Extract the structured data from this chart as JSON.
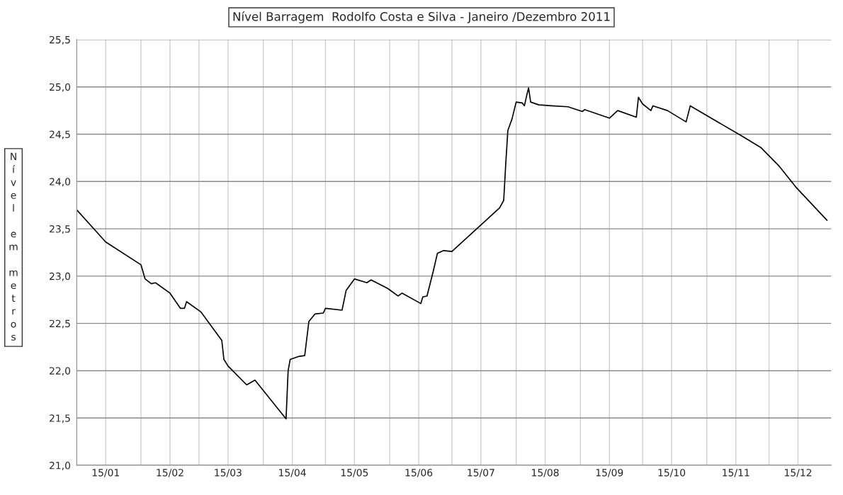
{
  "chart_data": {
    "type": "line",
    "title": "Nível Barragem  Rodolfo Costa e Silva - Janeiro /Dezembro 2011",
    "ylabel": "Nível em metros",
    "x": [
      "2011-01-01",
      "2011-01-15",
      "2011-02-01",
      "2011-02-03",
      "2011-02-06",
      "2011-02-08",
      "2011-02-15",
      "2011-02-20",
      "2011-02-22",
      "2011-02-23",
      "2011-03-02",
      "2011-03-12",
      "2011-03-13",
      "2011-03-15",
      "2011-03-24",
      "2011-03-28",
      "2011-04-12",
      "2011-04-13",
      "2011-04-14",
      "2011-04-18",
      "2011-04-21",
      "2011-04-23",
      "2011-04-26",
      "2011-04-30",
      "2011-05-01",
      "2011-05-09",
      "2011-05-11",
      "2011-05-15",
      "2011-05-21",
      "2011-05-23",
      "2011-05-31",
      "2011-06-05",
      "2011-06-07",
      "2011-06-16",
      "2011-06-17",
      "2011-06-19",
      "2011-06-22",
      "2011-06-24",
      "2011-06-27",
      "2011-07-01",
      "2011-07-24",
      "2011-07-26",
      "2011-07-27",
      "2011-07-28",
      "2011-07-30",
      "2011-08-01",
      "2011-08-04",
      "2011-08-05",
      "2011-08-06",
      "2011-08-07",
      "2011-08-08",
      "2011-08-12",
      "2011-08-18",
      "2011-08-26",
      "2011-09-02",
      "2011-09-03",
      "2011-09-15",
      "2011-09-19",
      "2011-09-28",
      "2011-09-29",
      "2011-10-01",
      "2011-10-05",
      "2011-10-06",
      "2011-10-13",
      "2011-10-22",
      "2011-10-24",
      "2011-11-07",
      "2011-11-18",
      "2011-11-27",
      "2011-12-06",
      "2011-12-14",
      "2011-12-29"
    ],
    "series": [
      {
        "color": "#000000",
        "values": [
          23.7,
          23.36,
          23.12,
          22.97,
          22.92,
          22.93,
          22.82,
          22.66,
          22.66,
          22.73,
          22.62,
          22.32,
          22.12,
          22.05,
          21.85,
          21.9,
          21.49,
          22.0,
          22.12,
          22.15,
          22.16,
          22.52,
          22.6,
          22.61,
          22.66,
          22.64,
          22.85,
          22.97,
          22.93,
          22.96,
          22.87,
          22.79,
          22.82,
          22.71,
          22.78,
          22.79,
          23.05,
          23.24,
          23.27,
          23.26,
          23.72,
          23.8,
          24.19,
          24.54,
          24.66,
          24.84,
          24.83,
          24.8,
          24.9,
          24.99,
          24.84,
          24.81,
          24.8,
          24.79,
          24.74,
          24.76,
          24.67,
          24.75,
          24.68,
          24.89,
          24.82,
          24.75,
          24.8,
          24.75,
          24.63,
          24.8,
          24.62,
          24.48,
          24.36,
          24.16,
          23.94,
          23.59
        ]
      }
    ],
    "xlim": [
      "2011-01-01",
      "2011-12-31"
    ],
    "xticks": [
      {
        "value": "2011-01-15",
        "label": "15/01"
      },
      {
        "value": "2011-02-01",
        "label": null
      },
      {
        "value": "2011-02-15",
        "label": "15/02"
      },
      {
        "value": "2011-03-01",
        "label": null
      },
      {
        "value": "2011-03-15",
        "label": "15/03"
      },
      {
        "value": "2011-04-01",
        "label": null
      },
      {
        "value": "2011-04-15",
        "label": "15/04"
      },
      {
        "value": "2011-05-01",
        "label": null
      },
      {
        "value": "2011-05-15",
        "label": "15/05"
      },
      {
        "value": "2011-06-01",
        "label": null
      },
      {
        "value": "2011-06-15",
        "label": "15/06"
      },
      {
        "value": "2011-07-01",
        "label": null
      },
      {
        "value": "2011-07-15",
        "label": "15/07"
      },
      {
        "value": "2011-08-01",
        "label": null
      },
      {
        "value": "2011-08-15",
        "label": "15/08"
      },
      {
        "value": "2011-09-01",
        "label": null
      },
      {
        "value": "2011-09-15",
        "label": "15/09"
      },
      {
        "value": "2011-10-01",
        "label": null
      },
      {
        "value": "2011-10-15",
        "label": "15/10"
      },
      {
        "value": "2011-11-01",
        "label": null
      },
      {
        "value": "2011-11-15",
        "label": "15/11"
      },
      {
        "value": "2011-12-01",
        "label": null
      },
      {
        "value": "2011-12-15",
        "label": "15/12"
      }
    ],
    "ylim": [
      21.0,
      25.5
    ],
    "yticks": [
      {
        "value": 21.0,
        "label": "21,0"
      },
      {
        "value": 21.5,
        "label": "21,5"
      },
      {
        "value": 22.0,
        "label": "22,0"
      },
      {
        "value": 22.5,
        "label": "22,5"
      },
      {
        "value": 23.0,
        "label": "23,0"
      },
      {
        "value": 23.5,
        "label": "23,5"
      },
      {
        "value": 24.0,
        "label": "24,0"
      },
      {
        "value": 24.5,
        "label": "24,5"
      },
      {
        "value": 25.0,
        "label": "25,0"
      },
      {
        "value": 25.5,
        "label": "25,5"
      }
    ],
    "grid": true,
    "marker": "none",
    "line_style": "solid"
  }
}
